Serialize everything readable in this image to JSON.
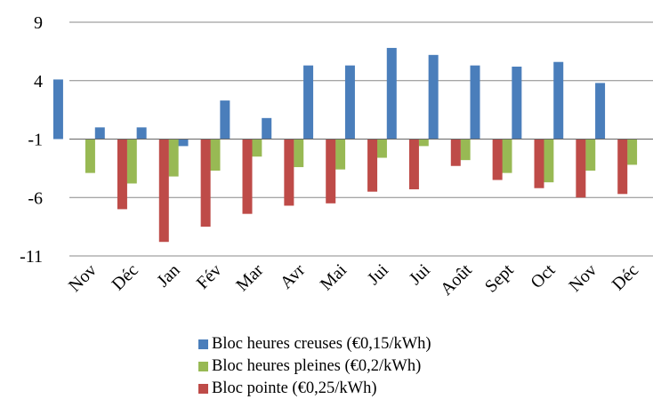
{
  "chart_data": {
    "type": "bar",
    "title": "",
    "xlabel": "",
    "ylabel": "",
    "ylim": [
      -11,
      9
    ],
    "yticks": [
      9,
      4,
      -1,
      -6,
      -11
    ],
    "grid": true,
    "legend_position": "bottom",
    "categories": [
      "Nov",
      "Déc",
      "Jan",
      "Fév",
      "Mar",
      "Avr",
      "Mai",
      "Jui",
      "Jui",
      "Août",
      "Sept",
      "Oct",
      "Nov",
      "Déc"
    ],
    "series": [
      {
        "name": "Bloc heures creuses (€0,15/kWh)",
        "color": "#4a7ebb",
        "values": [
          4.1,
          0.0,
          0.0,
          -1.6,
          2.3,
          0.8,
          5.3,
          5.3,
          6.8,
          6.2,
          5.3,
          5.2,
          5.6,
          3.8
        ]
      },
      {
        "name": "Bloc heures pleines (€0,2/kWh)",
        "color": "#98b954",
        "values": [
          -3.9,
          -4.8,
          -4.2,
          -3.7,
          -2.5,
          -3.4,
          -3.6,
          -2.6,
          -1.6,
          -2.8,
          -3.9,
          -4.7,
          -3.7,
          -3.2
        ]
      },
      {
        "name": "Bloc pointe (€0,25/kWh)",
        "color": "#be4b48",
        "values": [
          -7.0,
          -9.8,
          -8.5,
          -7.4,
          -6.7,
          -6.5,
          -5.5,
          -5.3,
          -3.3,
          -4.5,
          -5.2,
          -6.0,
          -5.7,
          -5.1
        ]
      }
    ]
  }
}
